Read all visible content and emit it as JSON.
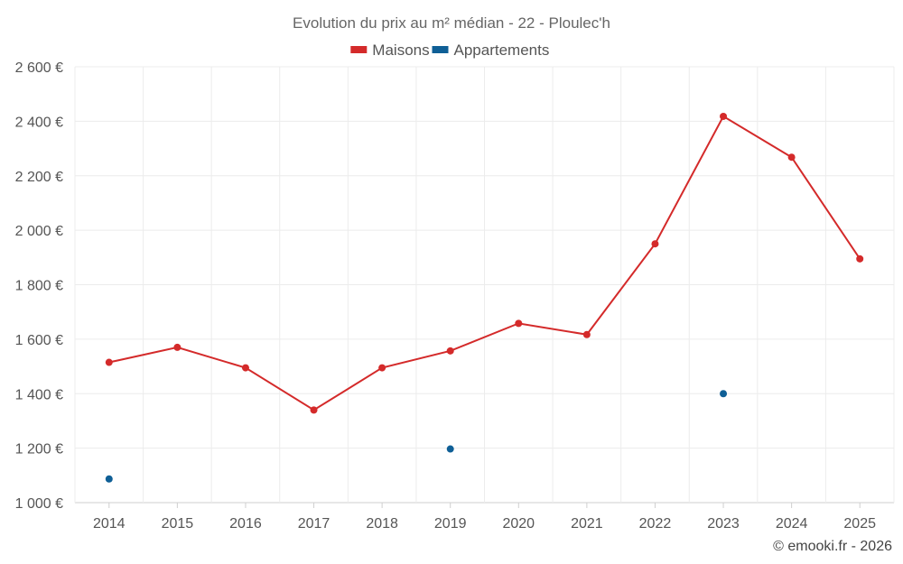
{
  "chart_data": {
    "type": "line",
    "title": "Evolution du prix au m² médian - 22 - Ploulec'h",
    "categories": [
      "2014",
      "2015",
      "2016",
      "2017",
      "2018",
      "2019",
      "2020",
      "2021",
      "2022",
      "2023",
      "2024",
      "2025"
    ],
    "series": [
      {
        "name": "Maisons",
        "color": "#d42a2a",
        "line": true,
        "values": [
          1515,
          1570,
          1495,
          1340,
          1495,
          1557,
          1658,
          1617,
          1950,
          2418,
          2268,
          1895
        ]
      },
      {
        "name": "Appartements",
        "color": "#0f5f96",
        "line": false,
        "values": [
          1087,
          null,
          null,
          null,
          null,
          1197,
          null,
          null,
          null,
          1400,
          null,
          null
        ]
      }
    ],
    "y_ticks": [
      "1 000 €",
      "1 200 €",
      "1 400 €",
      "1 600 €",
      "1 800 €",
      "2 000 €",
      "2 200 €",
      "2 400 €",
      "2 600 €"
    ],
    "y_tick_values": [
      1000,
      1200,
      1400,
      1600,
      1800,
      2000,
      2200,
      2400,
      2600
    ],
    "ylim": [
      1000,
      2600
    ],
    "grid": true,
    "legend_position": "top-center",
    "credit": "© emooki.fr - 2026"
  }
}
